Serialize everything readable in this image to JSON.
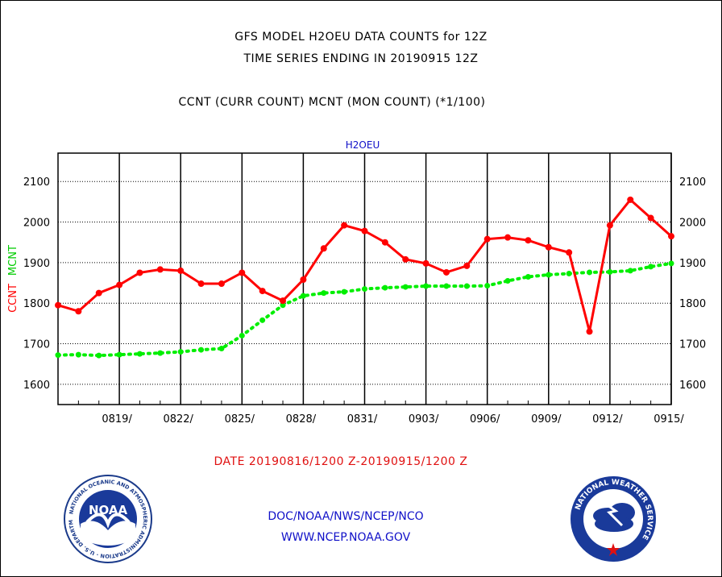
{
  "header": {
    "title_line1": "GFS MODEL H2OEU DATA COUNTS for 12Z",
    "title_line2": "TIME SERIES ENDING IN 20190915 12Z",
    "subtitle": "CCNT (CURR COUNT) MCNT (MON COUNT) (*1/100)"
  },
  "chart_data": {
    "type": "line",
    "title": "H2OEU",
    "ylabel_parts": [
      "CCNT",
      "MCNT"
    ],
    "ylabel_colors": [
      "#ff0000",
      "#00cc00"
    ],
    "ylim": [
      1550,
      2170
    ],
    "y_ticks": [
      1600,
      1700,
      1800,
      1900,
      2000,
      2100
    ],
    "x_ticks": [
      "0819/",
      "0822/",
      "0825/",
      "0828/",
      "0831/",
      "0903/",
      "0906/",
      "0909/",
      "0912/",
      "0915/"
    ],
    "grid": true,
    "x": [
      "0816",
      "0817",
      "0818",
      "0819",
      "0820",
      "0821",
      "0822",
      "0823",
      "0824",
      "0825",
      "0826",
      "0827",
      "0828",
      "0829",
      "0830",
      "0831",
      "0901",
      "0902",
      "0903",
      "0904",
      "0905",
      "0906",
      "0907",
      "0908",
      "0909",
      "0910",
      "0911",
      "0912",
      "0913",
      "0914",
      "0915"
    ],
    "series": [
      {
        "name": "CCNT",
        "color": "#ff0000",
        "style": "solid",
        "values": [
          1795,
          1780,
          1825,
          1845,
          1875,
          1883,
          1880,
          1848,
          1848,
          1875,
          1830,
          1806,
          1858,
          1935,
          1992,
          1978,
          1950,
          1908,
          1898,
          1876,
          1892,
          1958,
          1962,
          1955,
          1938,
          1925,
          1730,
          1992,
          2055,
          2010,
          1965
        ]
      },
      {
        "name": "MCNT",
        "color": "#00ee00",
        "style": "dotted",
        "values": [
          1672,
          1673,
          1671,
          1673,
          1675,
          1677,
          1680,
          1685,
          1688,
          1720,
          1758,
          1795,
          1818,
          1825,
          1828,
          1835,
          1838,
          1840,
          1842,
          1842,
          1842,
          1843,
          1855,
          1865,
          1870,
          1873,
          1876,
          1877,
          1880,
          1890,
          1898
        ]
      }
    ]
  },
  "footer": {
    "date_range": "DATE 20190816/1200 Z-20190915/1200 Z",
    "link1": "DOC/NOAA/NWS/NCEP/NCO",
    "link2": "WWW.NCEP.NOAA.GOV",
    "noaa_logo_text": "NOAA",
    "noaa_ring_text": "NATIONAL OCEANIC AND ATMOSPHERIC ADMINISTRATION · U.S. DEPARTMENT OF COMMERCE",
    "nws_ring_text": "NATIONAL WEATHER SERVICE"
  }
}
